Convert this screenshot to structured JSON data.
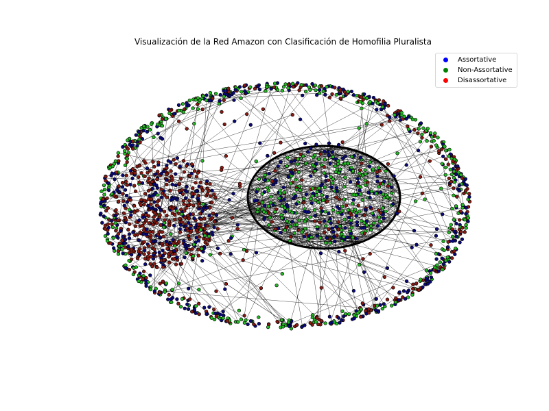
{
  "title": "Visualización de la Red Amazon con Clasificación de Homofilia Pluralista",
  "legend": [
    {
      "label": "Assortative",
      "color": "#0000ff",
      "node_color": "#0a0a7a"
    },
    {
      "label": "Non-Assortative",
      "color": "#008000",
      "node_color": "#22bb22"
    },
    {
      "label": "Disassortative",
      "color": "#ff0000",
      "node_color": "#8a1a12"
    }
  ],
  "edge_color": "#000000"
}
